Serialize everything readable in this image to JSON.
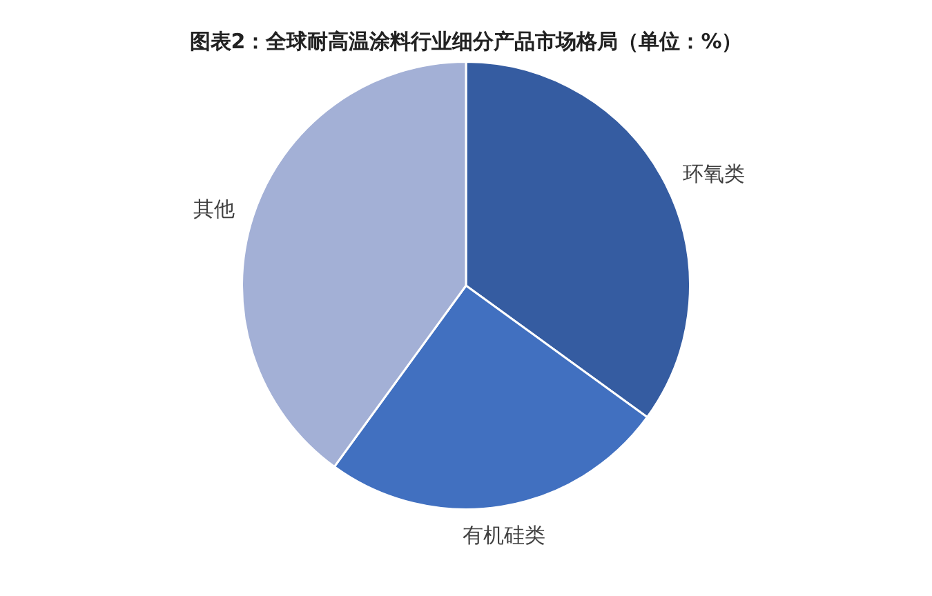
{
  "chart_data": {
    "type": "pie",
    "title": "图表2：全球耐高温涂料行业细分产品市场格局（单位：%）",
    "categories": [
      "环氧类",
      "有机硅类",
      "其他"
    ],
    "values": [
      35,
      25,
      40
    ],
    "colors": [
      "#355ca1",
      "#4170c0",
      "#a3b0d6"
    ]
  }
}
